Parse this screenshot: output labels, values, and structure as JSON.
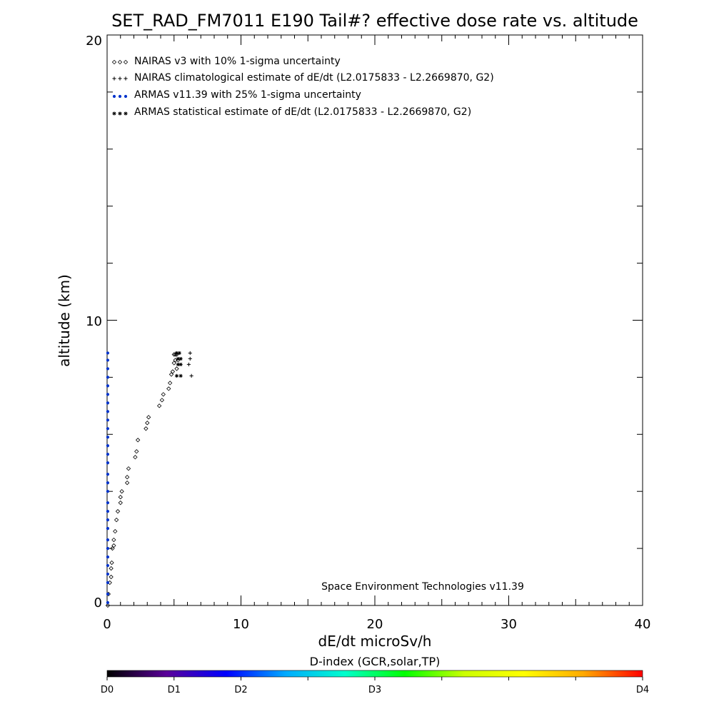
{
  "chart_data": {
    "type": "scatter",
    "title": "SET_RAD_FM7011  E190 Tail#? effective dose rate vs. altitude",
    "xlabel": "dE/dt microSv/h",
    "ylabel": "altitude (km)",
    "xlim": [
      0,
      40
    ],
    "ylim": [
      0,
      20
    ],
    "xticks": [
      "0",
      "10",
      "20",
      "30",
      "40"
    ],
    "yticks": [
      "0",
      "10",
      "20"
    ],
    "grid": false,
    "legend_position": "top-left",
    "annotation": "Space Environment Technologies v11.39",
    "colorbar": {
      "title": "D-index (GCR,solar,TP)",
      "labels": [
        {
          "text": "D0",
          "value": 0.0
        },
        {
          "text": "D1",
          "value": 0.125
        },
        {
          "text": "D2",
          "value": 0.25
        },
        {
          "text": "D3",
          "value": 0.5
        },
        {
          "text": "D4",
          "value": 1.0
        }
      ],
      "colors": [
        "#000000",
        "#5a0099",
        "#0000ff",
        "#00aaff",
        "#00ffcc",
        "#00ff00",
        "#ccff00",
        "#ffff00",
        "#ffaa00",
        "#ff0000"
      ]
    },
    "series": [
      {
        "name": "NAIRAS v3 with 10% 1-sigma uncertainty",
        "marker": "diamond",
        "color": "#000000",
        "x": [
          0.05,
          0.1,
          0.2,
          0.3,
          0.3,
          0.35,
          0.4,
          0.5,
          0.5,
          0.6,
          0.7,
          0.8,
          1.0,
          1.0,
          1.1,
          1.5,
          1.5,
          1.6,
          2.1,
          2.2,
          2.3,
          2.9,
          3.0,
          3.1,
          3.9,
          4.1,
          4.2,
          4.6,
          4.7,
          4.8,
          4.9,
          5.0,
          5.0,
          5.1,
          5.1,
          5.2,
          5.2,
          5.3
        ],
        "y": [
          0.0,
          0.4,
          0.8,
          1.0,
          1.3,
          1.5,
          2.0,
          2.1,
          2.3,
          2.6,
          3.0,
          3.3,
          3.6,
          3.8,
          4.0,
          4.3,
          4.5,
          4.8,
          5.2,
          5.4,
          5.8,
          6.2,
          6.4,
          6.6,
          7.0,
          7.2,
          7.4,
          7.6,
          7.8,
          8.1,
          8.2,
          8.5,
          8.8,
          8.8,
          8.6,
          8.3,
          8.8,
          8.6
        ]
      },
      {
        "name": "NAIRAS climatological estimate of dE/dt (L2.0175833 - L2.2669870, G2)",
        "marker": "plus",
        "color": "#000000",
        "x": [
          6.2,
          6.2,
          6.1,
          6.3
        ],
        "y": [
          8.85,
          8.65,
          8.45,
          8.05
        ]
      },
      {
        "name": "ARMAS v11.39 with 25% 1-sigma uncertainty",
        "marker": "dot",
        "color": "#0033cc",
        "x": [
          0.05,
          0.05,
          0.05,
          0.05,
          0.05,
          0.05,
          0.05,
          0.05,
          0.05,
          0.05,
          0.05,
          0.05,
          0.05,
          0.05,
          0.05,
          0.05,
          0.05,
          0.05,
          0.05,
          0.05,
          0.05,
          0.05,
          0.05,
          0.05,
          0.05,
          0.05,
          0.05,
          0.05,
          0.05
        ],
        "y": [
          0.1,
          0.4,
          0.8,
          1.1,
          1.4,
          1.7,
          2.0,
          2.3,
          2.7,
          3.0,
          3.3,
          3.6,
          4.0,
          4.3,
          4.6,
          5.0,
          5.3,
          5.6,
          5.9,
          6.2,
          6.5,
          6.8,
          7.1,
          7.4,
          7.7,
          8.0,
          8.3,
          8.6,
          8.85
        ]
      },
      {
        "name": "ARMAS statistical estimate of dE/dt (L2.0175833 - L2.2669870, G2)",
        "marker": "asterisk",
        "color": "#000000",
        "x": [
          5.2,
          5.4,
          5.5,
          5.3,
          5.5,
          5.3,
          5.2,
          5.5
        ],
        "y": [
          8.85,
          8.85,
          8.65,
          8.65,
          8.45,
          8.45,
          8.05,
          8.05
        ]
      }
    ]
  }
}
